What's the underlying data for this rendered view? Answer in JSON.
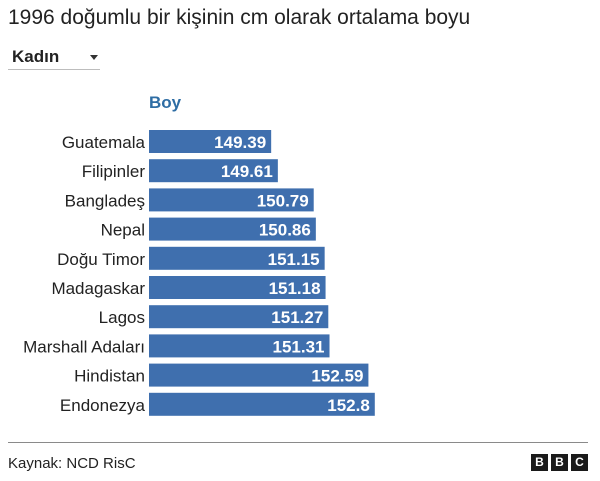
{
  "title": "1996 doğumlu bir kişinin cm olarak ortalama boyu",
  "filter": {
    "selected": "Kadın"
  },
  "source": "Kaynak: NCD RisC",
  "logo": [
    "B",
    "B",
    "C"
  ],
  "colors": {
    "bar": "#3f6fae",
    "header": "#2e6da4",
    "text": "#222222"
  },
  "chart_data": {
    "type": "bar",
    "orientation": "horizontal",
    "column_header": "Boy",
    "categories": [
      "Guatemala",
      "Filipinler",
      "Bangladeş",
      "Nepal",
      "Doğu Timor",
      "Madagaskar",
      "Lagos",
      "Marshall Adaları",
      "Hindistan",
      "Endonezya"
    ],
    "values": [
      149.39,
      149.61,
      150.79,
      150.86,
      151.15,
      151.18,
      151.27,
      151.31,
      152.59,
      152.8
    ],
    "value_labels": [
      "149.39",
      "149.61",
      "150.79",
      "150.86",
      "151.15",
      "151.18",
      "151.27",
      "151.31",
      "152.59",
      "152.8"
    ],
    "grid": false,
    "legend": "none"
  }
}
